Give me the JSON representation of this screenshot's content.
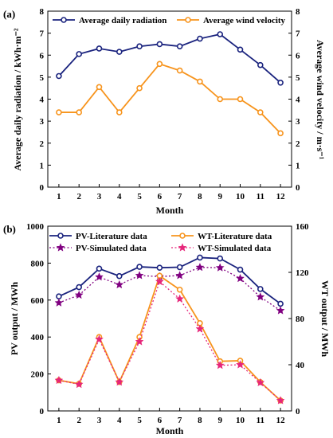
{
  "chart_data": [
    {
      "panel_label": "(a)",
      "type": "line",
      "x": [
        1,
        2,
        3,
        4,
        5,
        6,
        7,
        8,
        9,
        10,
        11,
        12
      ],
      "xlabel": "Month",
      "ylabel_left": "Average daily radiation / kWh·m⁻²",
      "ylabel_right": "Average wind velocity / m·s⁻¹",
      "ylim_left": [
        0,
        8
      ],
      "ylim_right": [
        0,
        8
      ],
      "yticks_left": [
        "0",
        "1",
        "2",
        "3",
        "4",
        "5",
        "6",
        "7",
        "8"
      ],
      "yticks_right": [
        "0",
        "1",
        "2",
        "3",
        "4",
        "5",
        "6",
        "7",
        "8"
      ],
      "legend_position": "top",
      "series": [
        {
          "name": "Average daily radiation",
          "axis": "left",
          "color": "#1a237e",
          "marker": "circle",
          "values": [
            5.05,
            6.05,
            6.3,
            6.15,
            6.4,
            6.5,
            6.4,
            6.75,
            6.95,
            6.25,
            5.55,
            4.75
          ]
        },
        {
          "name": "Average wind velocity",
          "axis": "right",
          "color": "#f7941d",
          "marker": "circle",
          "values": [
            3.4,
            3.4,
            4.55,
            3.4,
            4.5,
            5.6,
            5.3,
            4.8,
            4.0,
            4.0,
            3.4,
            2.45
          ]
        }
      ]
    },
    {
      "panel_label": "(b)",
      "type": "line",
      "x": [
        1,
        2,
        3,
        4,
        5,
        6,
        7,
        8,
        9,
        10,
        11,
        12
      ],
      "xlabel": "Month",
      "ylabel_left": "PV output / MWh",
      "ylabel_right": "WT output / MWh",
      "ylim_left": [
        0,
        1000
      ],
      "ylim_right": [
        0,
        160
      ],
      "yticks_left": [
        "0",
        "200",
        "400",
        "600",
        "800",
        "1000"
      ],
      "yticks_right": [
        "0",
        "40",
        "80",
        "120",
        "160"
      ],
      "legend_position": "top",
      "series": [
        {
          "name": "PV-Literature data",
          "axis": "left",
          "color": "#1a237e",
          "marker": "circle",
          "style": "solid",
          "values": [
            620,
            670,
            770,
            730,
            780,
            775,
            778,
            830,
            825,
            765,
            660,
            580
          ]
        },
        {
          "name": "PV-Simulated data",
          "axis": "left",
          "color": "#800080",
          "marker": "star",
          "style": "dotted",
          "values": [
            585,
            627,
            725,
            683,
            733,
            727,
            733,
            777,
            775,
            717,
            617,
            543
          ]
        },
        {
          "name": "WT-Literature data",
          "axis": "right",
          "color": "#f7941d",
          "marker": "circle",
          "style": "solid",
          "values": [
            26.5,
            23.5,
            64,
            25,
            64,
            117,
            105,
            76,
            43,
            43.5,
            25,
            9
          ]
        },
        {
          "name": "WT-Simulated data",
          "axis": "right",
          "color": "#e6267a",
          "marker": "star",
          "style": "dotted",
          "values": [
            26.5,
            23,
            62,
            25,
            60,
            112,
            97,
            71,
            39.5,
            40,
            24.5,
            9
          ]
        }
      ]
    }
  ]
}
